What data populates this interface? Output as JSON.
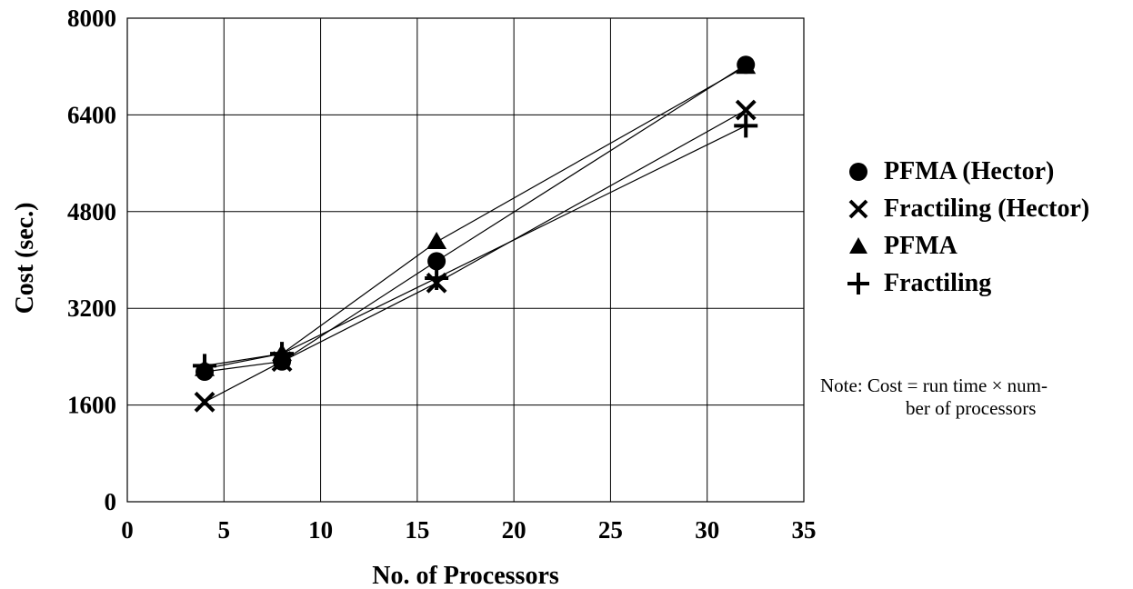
{
  "chart_data": {
    "type": "line",
    "xlabel": "No. of Processors",
    "ylabel": "Cost (sec.)",
    "xlim": [
      0,
      35
    ],
    "ylim": [
      0,
      8000
    ],
    "xticks": [
      0,
      5,
      10,
      15,
      20,
      25,
      30,
      35
    ],
    "yticks": [
      0,
      1600,
      3200,
      4800,
      6400,
      8000
    ],
    "grid": true,
    "legend_position": "right",
    "x": [
      4,
      8,
      16,
      32
    ],
    "series": [
      {
        "name": "PFMA (Hector)",
        "marker": "circle",
        "values": [
          2150,
          2320,
          3980,
          7230
        ]
      },
      {
        "name": "Fractiling (Hector)",
        "marker": "x",
        "values": [
          1650,
          2320,
          3620,
          6480
        ]
      },
      {
        "name": "PFMA",
        "marker": "triangle",
        "values": [
          2200,
          2450,
          4300,
          7200
        ]
      },
      {
        "name": "Fractiling",
        "marker": "plus",
        "values": [
          2250,
          2450,
          3700,
          6220
        ]
      }
    ]
  },
  "note": {
    "line1": "Note: Cost = run time × num-",
    "line2": "ber of processors"
  }
}
